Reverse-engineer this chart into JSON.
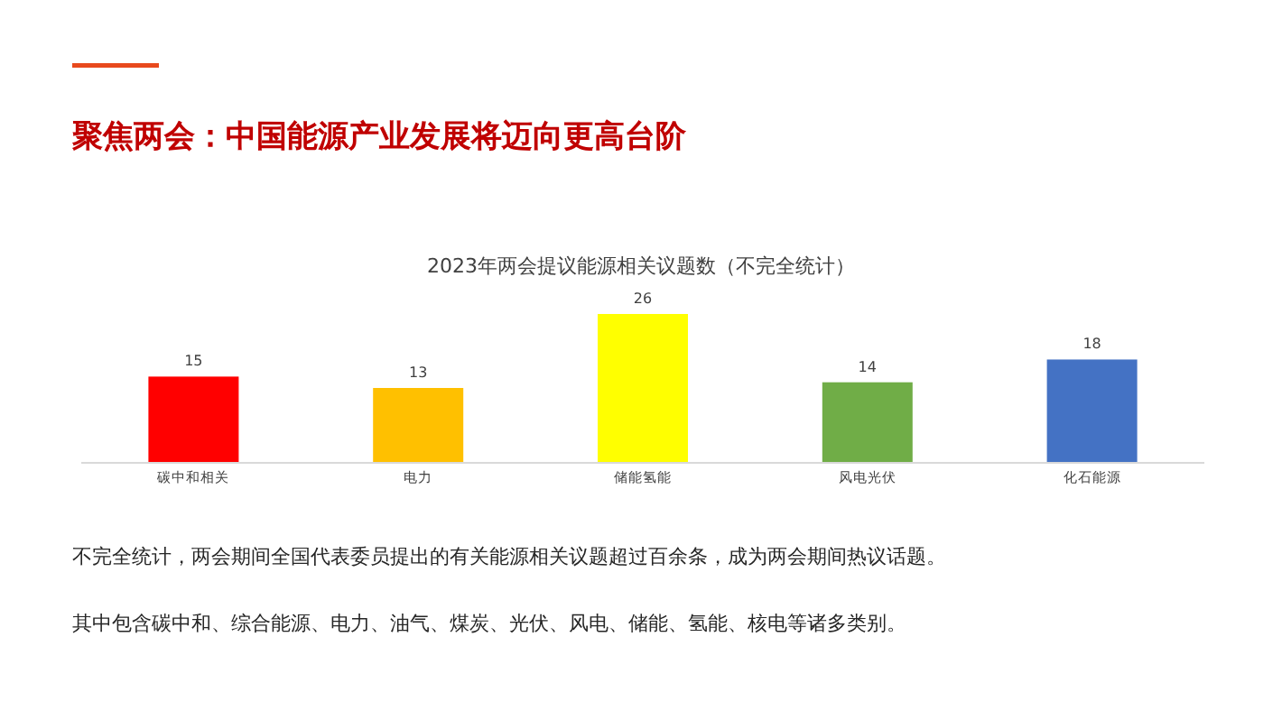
{
  "chart_data": {
    "type": "bar",
    "title": "聚焦两会：中国能源产业发展将迈向更高台阶",
    "subtitle": "2023年两会提议能源相关议题数（不完全统计）",
    "categories": [
      "碳中和相关",
      "电力",
      "储能氢能",
      "风电光伏",
      "化石能源"
    ],
    "values": [
      15,
      13,
      26,
      14,
      18
    ],
    "colors": [
      "#ff0000",
      "#ffc000",
      "#ffff00",
      "#70ad47",
      "#4472c4"
    ],
    "data_labels": true,
    "annotations": [
      "不完全统计，两会期间全国代表委员提出的有关能源相关议题超过百余条，成为两会期间热议话题。",
      "其中包含碳中和、综合能源、电力、油气、煤炭、光伏、风电、储能、氢能、核电等诸多类别。"
    ]
  }
}
